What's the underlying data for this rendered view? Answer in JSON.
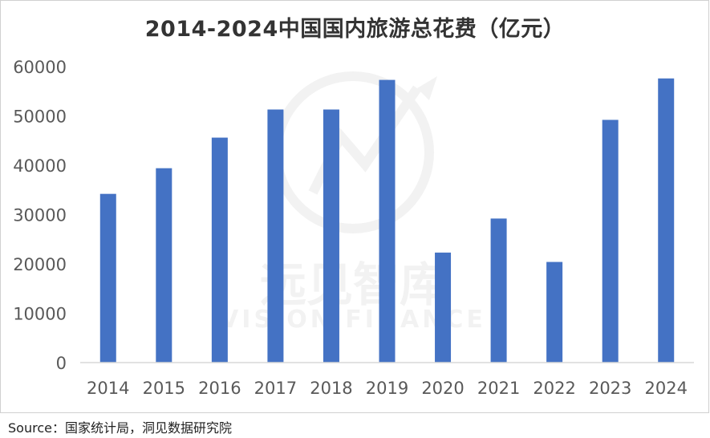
{
  "chart_data": {
    "type": "bar",
    "title": "2014-2024中国国内旅游总花费（亿元）",
    "xlabel": "",
    "ylabel": "",
    "categories": [
      "2014",
      "2015",
      "2016",
      "2017",
      "2018",
      "2019",
      "2020",
      "2021",
      "2022",
      "2023",
      "2024"
    ],
    "values": [
      34200,
      39400,
      45600,
      51300,
      51300,
      57300,
      22300,
      29200,
      20400,
      49200,
      57600
    ],
    "ylim": [
      0,
      60000
    ],
    "yticks": [
      "0",
      "10000",
      "20000",
      "30000",
      "40000",
      "50000",
      "60000"
    ],
    "grid": false,
    "legend": "none",
    "bar_color": "#4472C4"
  },
  "source": "Source：国家统计局，洞见数据研究院",
  "watermark": {
    "text_cn": "远见智库",
    "text_en": "VISION FINANCE"
  }
}
